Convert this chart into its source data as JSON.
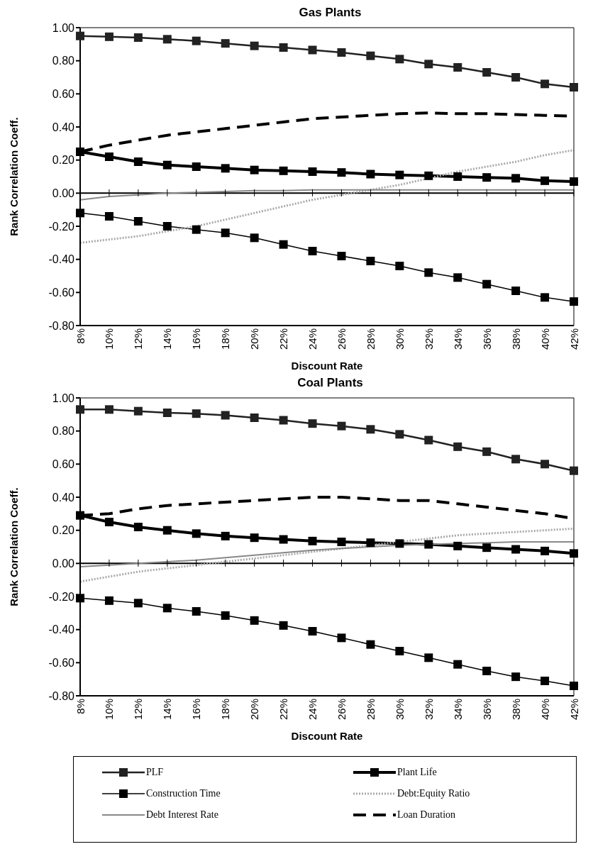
{
  "chart_data": [
    {
      "type": "line",
      "title": "Gas Plants",
      "xlabel": "Discount Rate",
      "ylabel": "Rank Correlation Coeff.",
      "categories": [
        "8%",
        "10%",
        "12%",
        "14%",
        "16%",
        "18%",
        "20%",
        "22%",
        "24%",
        "26%",
        "28%",
        "30%",
        "32%",
        "34%",
        "36%",
        "38%",
        "40%",
        "42%"
      ],
      "ylim": [
        -0.8,
        1.0
      ],
      "yticks": [
        {
          "value": -0.8,
          "label": "-0.80"
        },
        {
          "value": -0.6,
          "label": "-0.60"
        },
        {
          "value": -0.4,
          "label": "-0.40"
        },
        {
          "value": -0.2,
          "label": "-0.20"
        },
        {
          "value": 0,
          "label": "0.00"
        },
        {
          "value": 0.2,
          "label": "0.20"
        },
        {
          "value": 0.4,
          "label": "0.40"
        },
        {
          "value": 0.6,
          "label": "0.60"
        },
        {
          "value": 0.8,
          "label": "0.80"
        },
        {
          "value": 1.0,
          "label": "1.00"
        }
      ],
      "legend": "bottom",
      "series": [
        {
          "name": "PLF",
          "color": "#222222",
          "marker": "square",
          "line_style": "solid",
          "values": [
            0.95,
            0.945,
            0.94,
            0.93,
            0.92,
            0.905,
            0.89,
            0.88,
            0.865,
            0.85,
            0.83,
            0.81,
            0.78,
            0.76,
            0.73,
            0.7,
            0.66,
            0.64
          ]
        },
        {
          "name": "Plant Life",
          "color": "#000000",
          "marker": "square",
          "line_style": "solid",
          "values": [
            0.25,
            0.22,
            0.19,
            0.17,
            0.16,
            0.15,
            0.14,
            0.135,
            0.13,
            0.125,
            0.115,
            0.11,
            0.105,
            0.1,
            0.095,
            0.09,
            0.075,
            0.07
          ]
        },
        {
          "name": "Construction Time",
          "color": "#000000",
          "marker": "square",
          "line_style": "solid",
          "values": [
            -0.12,
            -0.14,
            -0.17,
            -0.2,
            -0.22,
            -0.24,
            -0.27,
            -0.31,
            -0.35,
            -0.38,
            -0.41,
            -0.44,
            -0.48,
            -0.51,
            -0.55,
            -0.59,
            -0.63,
            -0.655
          ]
        },
        {
          "name": "Debt:Equity Ratio",
          "color": "#aaaaaa",
          "marker": "none",
          "line_style": "dotted",
          "values": [
            -0.3,
            -0.28,
            -0.26,
            -0.23,
            -0.2,
            -0.16,
            -0.12,
            -0.08,
            -0.04,
            -0.01,
            0.02,
            0.05,
            0.09,
            0.13,
            0.16,
            0.19,
            0.23,
            0.26
          ]
        },
        {
          "name": "Debt Interest Rate",
          "color": "#888888",
          "marker": "none",
          "line_style": "solid",
          "values": [
            -0.04,
            -0.02,
            -0.01,
            0,
            0.005,
            0.01,
            0.015,
            0.015,
            0.02,
            0.02,
            0.02,
            0.02,
            0.02,
            0.02,
            0.02,
            0.02,
            0.02,
            0.02
          ]
        },
        {
          "name": "Loan Duration",
          "color": "#000000",
          "marker": "none",
          "line_style": "dashed",
          "values": [
            0.25,
            0.29,
            0.32,
            0.35,
            0.37,
            0.39,
            0.41,
            0.43,
            0.45,
            0.46,
            0.47,
            0.48,
            0.485,
            0.48,
            0.48,
            0.475,
            0.47,
            0.465
          ]
        }
      ]
    },
    {
      "type": "line",
      "title": "Coal Plants",
      "xlabel": "Discount Rate",
      "ylabel": "Rank Correlation Coeff.",
      "categories": [
        "8%",
        "10%",
        "12%",
        "14%",
        "16%",
        "18%",
        "20%",
        "22%",
        "24%",
        "26%",
        "28%",
        "30%",
        "32%",
        "34%",
        "36%",
        "38%",
        "40%",
        "42%"
      ],
      "ylim": [
        -0.8,
        1.0
      ],
      "yticks": [
        {
          "value": -0.8,
          "label": "-0.80"
        },
        {
          "value": -0.6,
          "label": "-0.60"
        },
        {
          "value": -0.4,
          "label": "-0.40"
        },
        {
          "value": -0.2,
          "label": "-0.20"
        },
        {
          "value": 0,
          "label": "0.00"
        },
        {
          "value": 0.2,
          "label": "0.20"
        },
        {
          "value": 0.4,
          "label": "0.40"
        },
        {
          "value": 0.6,
          "label": "0.60"
        },
        {
          "value": 0.8,
          "label": "0.80"
        },
        {
          "value": 1.0,
          "label": "1.00"
        }
      ],
      "legend": "bottom",
      "series": [
        {
          "name": "PLF",
          "color": "#222222",
          "marker": "square",
          "line_style": "solid",
          "values": [
            0.93,
            0.93,
            0.92,
            0.91,
            0.905,
            0.895,
            0.88,
            0.865,
            0.845,
            0.83,
            0.81,
            0.78,
            0.745,
            0.705,
            0.675,
            0.63,
            0.6,
            0.56
          ]
        },
        {
          "name": "Plant Life",
          "color": "#000000",
          "marker": "square",
          "line_style": "solid",
          "values": [
            0.29,
            0.25,
            0.22,
            0.2,
            0.18,
            0.165,
            0.155,
            0.145,
            0.135,
            0.13,
            0.125,
            0.12,
            0.115,
            0.105,
            0.095,
            0.085,
            0.075,
            0.06
          ]
        },
        {
          "name": "Construction Time",
          "color": "#000000",
          "marker": "square",
          "line_style": "solid",
          "values": [
            -0.21,
            -0.225,
            -0.24,
            -0.27,
            -0.29,
            -0.315,
            -0.345,
            -0.375,
            -0.41,
            -0.45,
            -0.49,
            -0.53,
            -0.57,
            -0.61,
            -0.65,
            -0.685,
            -0.71,
            -0.74
          ]
        },
        {
          "name": "Debt:Equity Ratio",
          "color": "#aaaaaa",
          "marker": "none",
          "line_style": "dotted",
          "values": [
            -0.11,
            -0.08,
            -0.05,
            -0.03,
            -0.01,
            0.01,
            0.03,
            0.05,
            0.07,
            0.09,
            0.11,
            0.13,
            0.15,
            0.17,
            0.18,
            0.19,
            0.2,
            0.21
          ]
        },
        {
          "name": "Debt Interest Rate",
          "color": "#888888",
          "marker": "none",
          "line_style": "solid",
          "values": [
            -0.02,
            -0.01,
            0.0,
            0.01,
            0.02,
            0.035,
            0.05,
            0.065,
            0.08,
            0.09,
            0.1,
            0.11,
            0.115,
            0.12,
            0.125,
            0.13,
            0.13,
            0.13
          ]
        },
        {
          "name": "Loan Duration",
          "color": "#000000",
          "marker": "none",
          "line_style": "dashed",
          "values": [
            0.29,
            0.3,
            0.33,
            0.35,
            0.36,
            0.37,
            0.38,
            0.39,
            0.4,
            0.4,
            0.39,
            0.38,
            0.38,
            0.36,
            0.34,
            0.32,
            0.3,
            0.27
          ]
        }
      ]
    }
  ]
}
